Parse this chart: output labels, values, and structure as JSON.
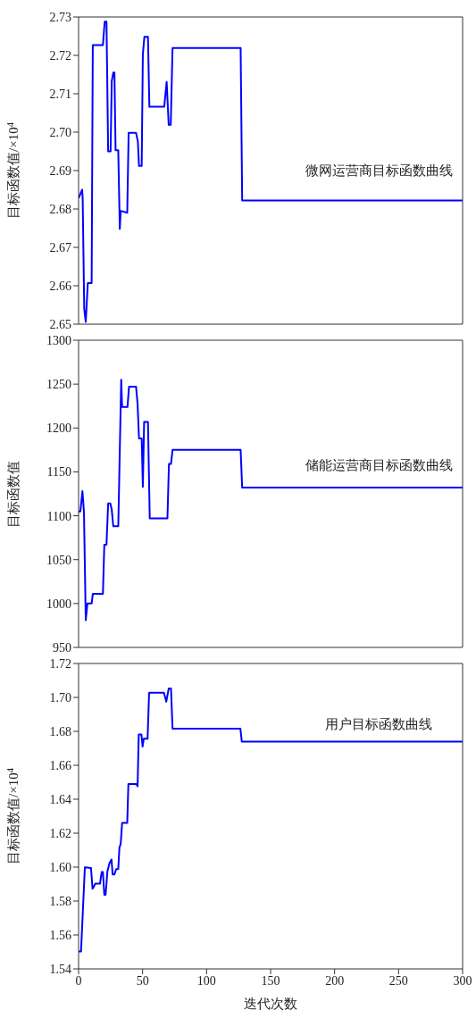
{
  "chart_data": [
    {
      "type": "line",
      "ylabel": "目标函数值/×10$^{4}$",
      "annotations": [
        "微网运营商目标函数曲线"
      ],
      "xlim": [
        0,
        300
      ],
      "xticks": [
        0,
        50,
        100,
        150,
        200,
        250,
        300
      ],
      "ylim": [
        2.65,
        2.73
      ],
      "yticks": [
        2.65,
        2.66,
        2.67,
        2.68,
        2.69,
        {
          "value": 2.7,
          "label": "2.70"
        },
        2.71,
        2.72,
        2.73
      ],
      "tick_labels": "y",
      "marker": "none",
      "series": [
        {
          "color": "#0000ff",
          "x": [
            0,
            2.8,
            3.2,
            4.4,
            5.6,
            7.2,
            10.2,
            11.1,
            19,
            20.4,
            21.8,
            23.1,
            25,
            25.9,
            27.1,
            28,
            28.9,
            31,
            32.2,
            32.9,
            38,
            39.1,
            44.9,
            46.3,
            47.2,
            49.3,
            50.2,
            51.4,
            54.2,
            55.3,
            66.9,
            68.8,
            70.4,
            72,
            73.4,
            126.6,
            127.8,
            300
          ],
          "values": [
            2.6828,
            2.685,
            2.6828,
            2.654,
            2.6506,
            2.6607,
            2.6607,
            2.7227,
            2.7227,
            2.7288,
            2.7288,
            2.695,
            2.695,
            2.7133,
            2.7155,
            2.7155,
            2.6953,
            2.6953,
            2.6748,
            2.6795,
            2.679,
            2.6998,
            2.6998,
            2.6976,
            2.6912,
            2.6912,
            2.7203,
            2.7248,
            2.7248,
            2.7066,
            2.7066,
            2.7131,
            2.7019,
            2.7019,
            2.7219,
            2.7219,
            2.6822,
            2.6822
          ]
        }
      ]
    },
    {
      "type": "line",
      "ylabel": "目标函数值",
      "annotations": [
        "储能运营商目标函数曲线"
      ],
      "xlim": [
        0,
        300
      ],
      "xticks": [
        0,
        50,
        100,
        150,
        200,
        250,
        300
      ],
      "ylim": [
        950,
        1300
      ],
      "yticks": [
        950,
        1000,
        1050,
        1100,
        1150,
        1200,
        1250,
        1300
      ],
      "tick_labels": "y",
      "marker": "none",
      "series": [
        {
          "color": "#0000ff",
          "x": [
            0,
            1.4,
            3,
            4.2,
            5.6,
            6.9,
            10.2,
            11.1,
            19,
            20.1,
            21.8,
            23.1,
            24.8,
            25.9,
            27.1,
            31,
            33.3,
            34,
            38.2,
            39.4,
            44.9,
            46.1,
            47.2,
            49.3,
            50.2,
            51.2,
            54.2,
            55.6,
            69.4,
            70.6,
            72.2,
            73.4,
            126.6,
            127.8,
            300
          ],
          "values": [
            1105,
            1105,
            1128,
            1104,
            981,
            1000,
            1000,
            1011,
            1011,
            1067,
            1067,
            1114,
            1114,
            1107,
            1088,
            1088,
            1255,
            1224,
            1224,
            1247,
            1247,
            1227,
            1188,
            1188,
            1133,
            1207,
            1207,
            1097,
            1097,
            1159,
            1159,
            1175,
            1175,
            1132,
            1132
          ]
        }
      ]
    },
    {
      "type": "line",
      "xlabel": "迭代次数",
      "ylabel": "目标函数值/×10$^{4}$",
      "annotations": [
        "用户目标函数曲线"
      ],
      "xlim": [
        0,
        300
      ],
      "xticks": [
        0,
        50,
        100,
        150,
        200,
        250,
        300
      ],
      "ylim": [
        1.54,
        1.72
      ],
      "yticks": [
        1.54,
        1.56,
        1.58,
        {
          "value": 1.6,
          "label": "1.60"
        },
        1.62,
        1.64,
        1.66,
        1.68,
        {
          "value": 1.7,
          "label": "1.70"
        },
        1.72
      ],
      "marker": "none",
      "series": [
        {
          "color": "#0000ff",
          "x": [
            0,
            1.9,
            4.9,
            9.7,
            10.9,
            12,
            13,
            16.7,
            18.1,
            19,
            20.1,
            21.1,
            22.5,
            24.1,
            25.7,
            26.6,
            28,
            29.4,
            31,
            31.9,
            32.9,
            34,
            38,
            38.9,
            45.1,
            46.1,
            47,
            49.1,
            50,
            50.9,
            53.9,
            55.1,
            66.7,
            68.5,
            70.4,
            72.2,
            73.4,
            126.4,
            127.5,
            300
          ],
          "values": [
            1.5502,
            1.5502,
            1.5999,
            1.5995,
            1.5872,
            1.5886,
            1.5902,
            1.5902,
            1.5971,
            1.5971,
            1.5837,
            1.5837,
            1.5974,
            1.6022,
            1.6045,
            1.5957,
            1.5957,
            1.5988,
            1.5988,
            1.6115,
            1.6136,
            1.626,
            1.626,
            1.6489,
            1.6489,
            1.6476,
            1.6781,
            1.6781,
            1.671,
            1.6756,
            1.6756,
            1.7027,
            1.7027,
            1.6975,
            1.7052,
            1.7052,
            1.6816,
            1.6816,
            1.674,
            1.674
          ]
        }
      ]
    }
  ]
}
